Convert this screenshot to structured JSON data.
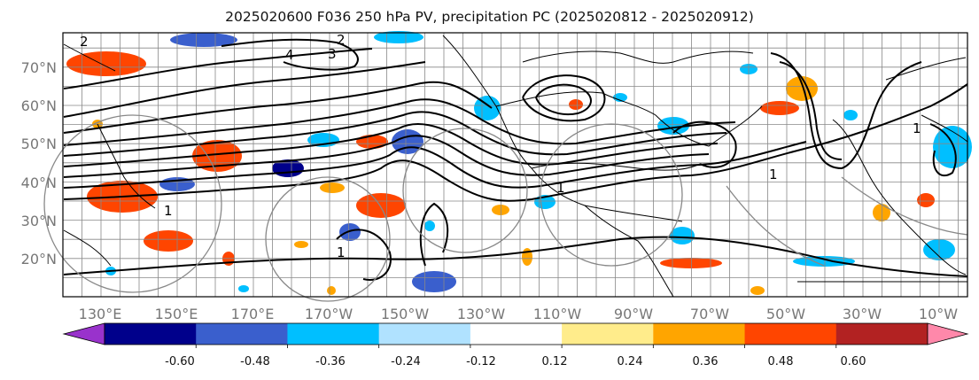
{
  "title": "2025020600 F036 250 hPa PV, precipitation PC (2025020812 - 2025020912)",
  "lat_labels": [
    "70°N",
    "60°N",
    "50°N",
    "40°N",
    "30°N",
    "20°N"
  ],
  "lon_labels": [
    "130°E",
    "150°E",
    "170°E",
    "170°W",
    "150°W",
    "130°W",
    "110°W",
    "90°W",
    "70°W",
    "50°W",
    "30°W",
    "10°W"
  ],
  "contour_labels": [
    "2",
    "4",
    "3",
    "2",
    "1",
    "1",
    "1",
    "1",
    "1"
  ],
  "colorbar": {
    "colors": [
      "#9932cc",
      "#00008b",
      "#3a5fcd",
      "#00bfff",
      "#b0e2ff",
      "#ffffff",
      "#ffec8b",
      "#ffa500",
      "#ff4500",
      "#b22222",
      "#ff88aa"
    ],
    "labels": [
      "-0.60",
      "-0.48",
      "-0.36",
      "-0.24",
      "-0.12",
      "0.12",
      "0.24",
      "0.36",
      "0.48",
      "0.60"
    ]
  },
  "colors": {
    "contour": "#000000",
    "grid": "#888888",
    "coast": "#000000"
  }
}
